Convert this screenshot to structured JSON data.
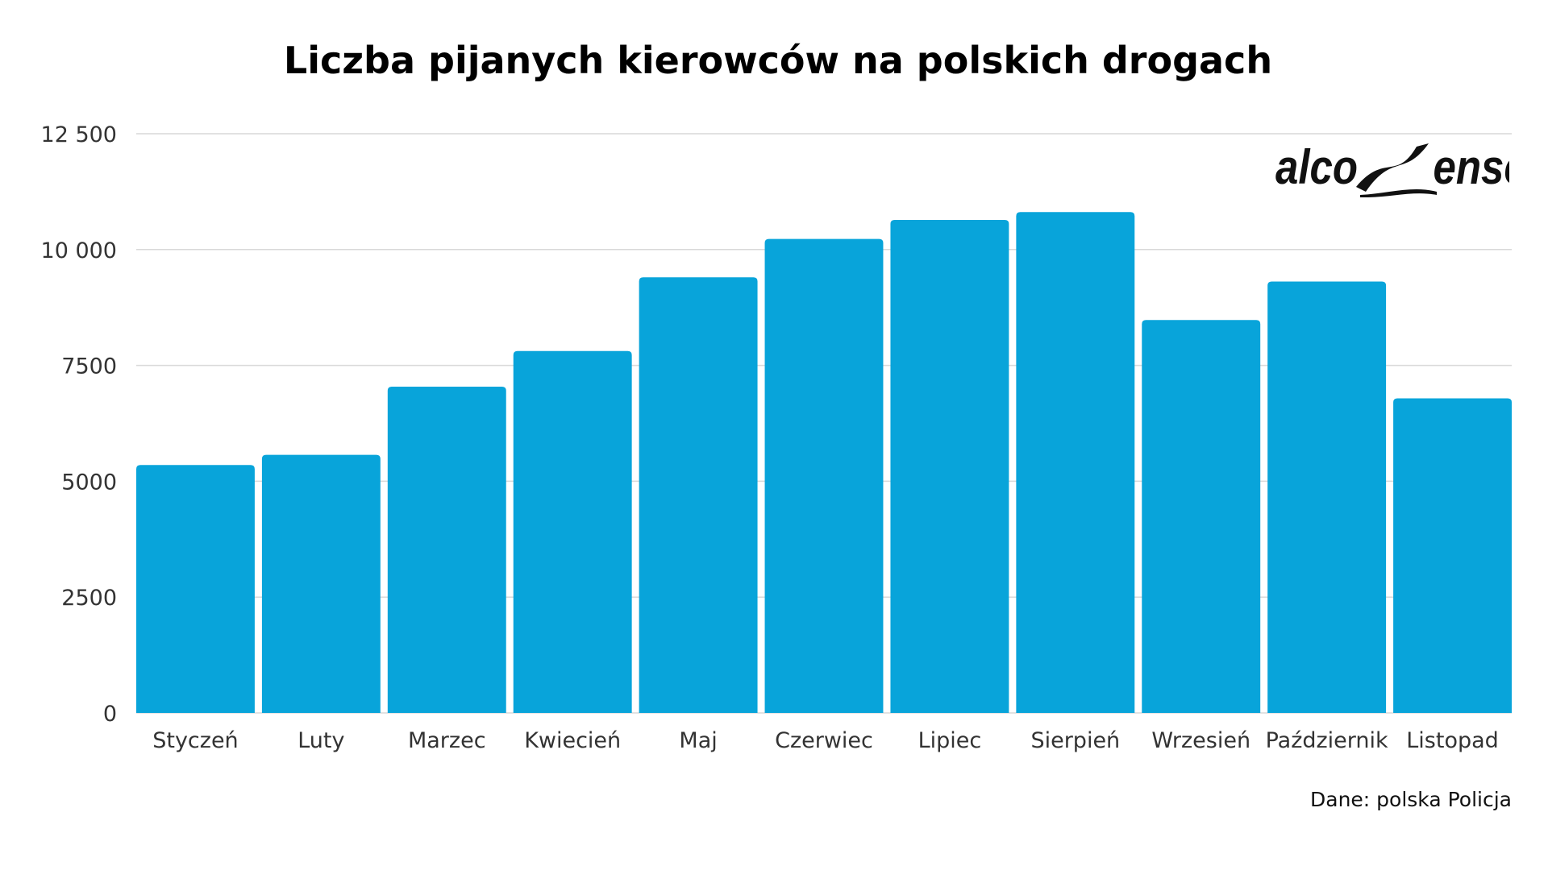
{
  "title": "Liczba pijanych kierowców na polskich drogach",
  "source": "Dane: polska Policja",
  "logo_text": "alcoSense",
  "colors": {
    "bar": "#08a4da",
    "grid": "#d9d9d9"
  },
  "chart_data": {
    "type": "bar",
    "title": "Liczba pijanych kierowców na polskich drogach",
    "xlabel": "",
    "ylabel": "",
    "ylim": [
      0,
      12500
    ],
    "yticks": [
      0,
      2500,
      5000,
      7500,
      10000,
      12500
    ],
    "ytick_labels": [
      "0",
      "2500",
      "5000",
      "7500",
      "10 000",
      "12 500"
    ],
    "grid": true,
    "categories": [
      "Styczeń",
      "Luty",
      "Marzec",
      "Kwiecień",
      "Maj",
      "Czerwiec",
      "Lipiec",
      "Sierpień",
      "Wrzesień",
      "Październik",
      "Listopad"
    ],
    "values": [
      5350,
      5570,
      7040,
      7810,
      9400,
      10230,
      10640,
      10810,
      8480,
      9310,
      6790
    ]
  }
}
